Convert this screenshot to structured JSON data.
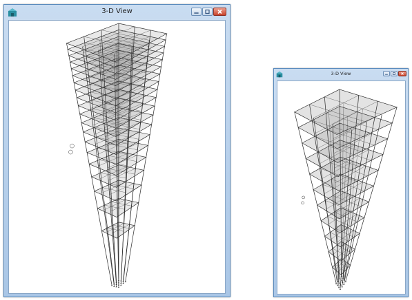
{
  "windows": [
    {
      "title": "3-D View"
    },
    {
      "title": "3-D View"
    }
  ],
  "icons": {
    "app": "tower-app-icon",
    "minimize": "minimize-icon",
    "maximize": "maximize-icon",
    "close": "close-icon"
  },
  "colors": {
    "frame": "#333333",
    "slab": "#9c9c9c",
    "close_button": "#c8432b"
  }
}
